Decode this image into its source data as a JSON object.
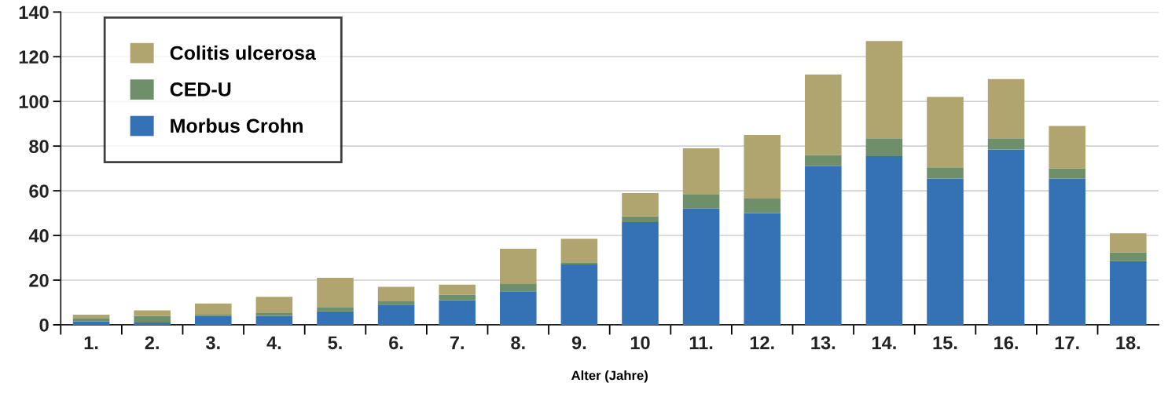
{
  "chart_data": {
    "type": "bar",
    "stacked": true,
    "xlabel": "Alter (Jahre)",
    "categories": [
      "1.",
      "2.",
      "3.",
      "4.",
      "5.",
      "6.",
      "7.",
      "8.",
      "9.",
      "10",
      "11.",
      "12.",
      "13.",
      "14.",
      "15.",
      "16.",
      "17.",
      "18."
    ],
    "series": [
      {
        "name": "Morbus Crohn",
        "color": "#3572b5",
        "values": [
          1.5,
          1,
          4,
          4,
          6,
          9,
          11,
          15,
          27,
          46,
          52,
          50,
          71,
          75.5,
          65.5,
          78.5,
          65.5,
          28.5
        ]
      },
      {
        "name": "CED-U",
        "color": "#6f8f6a",
        "values": [
          1.5,
          3,
          0.5,
          1.5,
          2,
          1.5,
          2.5,
          3.5,
          1,
          2.5,
          6.5,
          6.5,
          5,
          8,
          5,
          5,
          4.5,
          4
        ]
      },
      {
        "name": "Colitis ulcerosa",
        "color": "#b0a56e",
        "values": [
          1.5,
          2.5,
          5,
          7,
          13,
          6.5,
          4.5,
          15.5,
          10.5,
          10.5,
          20.5,
          28.5,
          36,
          43.5,
          31.5,
          26.5,
          19,
          8.5
        ]
      }
    ],
    "ylim": [
      0,
      140
    ],
    "yticks": [
      0,
      20,
      40,
      60,
      80,
      100,
      120,
      140
    ],
    "grid": "y",
    "legend": "top left"
  }
}
